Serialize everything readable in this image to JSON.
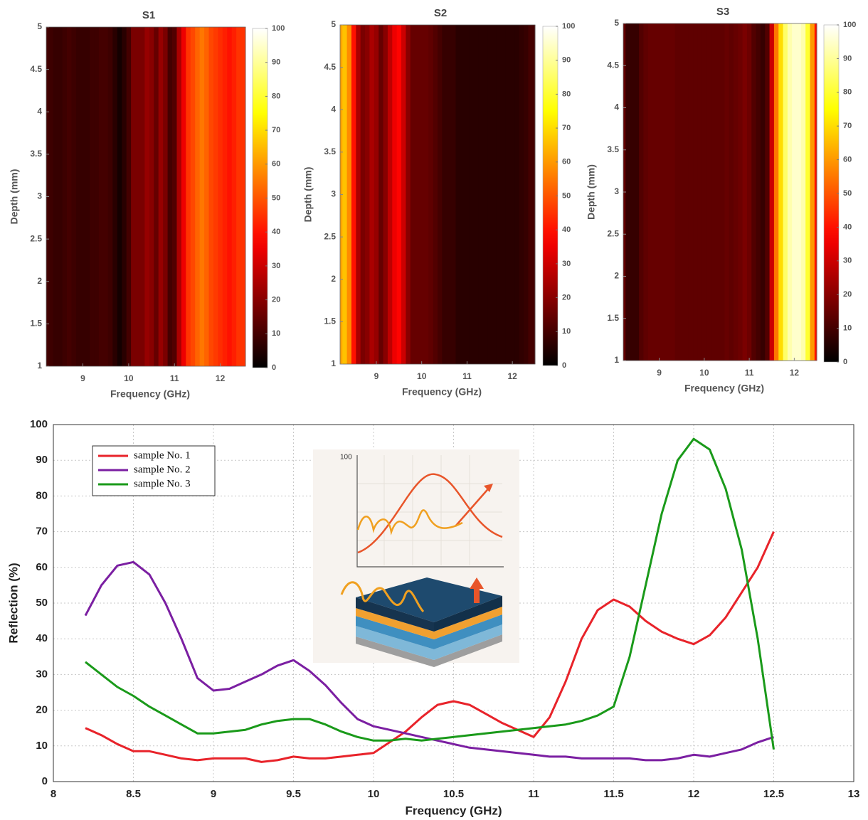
{
  "chart_data": [
    {
      "type": "heatmap",
      "title": "S1",
      "xlabel": "Frequency (GHz)",
      "ylabel": "Depth (mm)",
      "colormap": "hot",
      "x": [
        8.2,
        8.3,
        8.4,
        8.5,
        8.6,
        8.7,
        8.8,
        8.9,
        9.0,
        9.1,
        9.2,
        9.3,
        9.4,
        9.5,
        9.6,
        9.7,
        9.8,
        9.9,
        10.0,
        10.1,
        10.2,
        10.3,
        10.4,
        10.5,
        10.6,
        10.7,
        10.8,
        10.9,
        11.0,
        11.1,
        11.2,
        11.3,
        11.4,
        11.5,
        11.6,
        11.7,
        11.8,
        11.9,
        12.0,
        12.1,
        12.2,
        12.3,
        12.4,
        12.5
      ],
      "values": [
        10,
        9,
        8,
        8,
        9,
        10,
        9,
        8,
        8,
        8,
        9,
        9,
        10,
        10,
        9,
        6,
        3,
        6,
        10,
        18,
        18,
        18,
        22,
        20,
        15,
        22,
        18,
        10,
        12,
        25,
        35,
        45,
        48,
        52,
        55,
        52,
        48,
        46,
        44,
        42,
        40,
        42,
        45,
        45
      ],
      "xlim": [
        8.2,
        12.55
      ],
      "xticks": [
        9,
        10,
        11,
        12
      ],
      "ylim": [
        1,
        5
      ],
      "yticks": [
        1,
        1.5,
        2,
        2.5,
        3,
        3.5,
        4,
        4.5,
        5
      ],
      "clim": [
        0,
        100
      ],
      "cticks": [
        0,
        10,
        20,
        30,
        40,
        50,
        60,
        70,
        80,
        90,
        100
      ]
    },
    {
      "type": "heatmap",
      "title": "S2",
      "xlabel": "Frequency (GHz)",
      "ylabel": "Depth (mm)",
      "colormap": "hot",
      "x": [
        8.2,
        8.3,
        8.4,
        8.5,
        8.6,
        8.7,
        8.8,
        8.9,
        9.0,
        9.1,
        9.2,
        9.3,
        9.4,
        9.5,
        9.6,
        9.7,
        9.8,
        9.9,
        10.0,
        10.1,
        10.2,
        10.3,
        10.4,
        10.5,
        10.6,
        10.7,
        10.8,
        10.9,
        11.0,
        11.1,
        11.2,
        11.3,
        11.4,
        11.5,
        11.6,
        11.7,
        11.8,
        11.9,
        12.0,
        12.1,
        12.2,
        12.3,
        12.4,
        12.5
      ],
      "values": [
        62,
        66,
        58,
        40,
        25,
        18,
        20,
        25,
        22,
        15,
        20,
        28,
        35,
        38,
        30,
        20,
        15,
        15,
        15,
        15,
        14,
        12,
        10,
        8,
        8,
        8,
        6,
        6,
        6,
        6,
        6,
        6,
        6,
        6,
        6,
        6,
        6,
        6,
        6,
        6,
        7,
        8,
        10,
        10
      ],
      "xlim": [
        8.2,
        12.5
      ],
      "xticks": [
        9,
        10,
        11,
        12
      ],
      "ylim": [
        1,
        5
      ],
      "yticks": [
        1,
        1.5,
        2,
        2.5,
        3,
        3.5,
        4,
        4.5,
        5
      ],
      "clim": [
        0,
        100
      ],
      "cticks": [
        0,
        10,
        20,
        30,
        40,
        50,
        60,
        70,
        80,
        90,
        100
      ]
    },
    {
      "type": "heatmap",
      "title": "S3",
      "xlabel": "Frequency (GHz)",
      "ylabel": "Depth (mm)",
      "colormap": "hot",
      "x": [
        8.2,
        8.3,
        8.4,
        8.5,
        8.6,
        8.7,
        8.8,
        8.9,
        9.0,
        9.1,
        9.2,
        9.3,
        9.4,
        9.5,
        9.6,
        9.7,
        9.8,
        9.9,
        10.0,
        10.1,
        10.2,
        10.3,
        10.4,
        10.5,
        10.6,
        10.7,
        10.8,
        10.9,
        11.0,
        11.1,
        11.2,
        11.3,
        11.4,
        11.5,
        11.6,
        11.7,
        11.8,
        11.9,
        12.0,
        12.1,
        12.2,
        12.3,
        12.4,
        12.5
      ],
      "values": [
        15,
        8,
        8,
        8,
        12,
        14,
        15,
        15,
        15,
        15,
        15,
        15,
        14,
        14,
        14,
        14,
        14,
        14,
        14,
        14,
        14,
        14,
        14,
        15,
        14,
        15,
        16,
        18,
        16,
        12,
        10,
        8,
        12,
        30,
        55,
        70,
        85,
        92,
        95,
        95,
        92,
        80,
        60,
        40
      ],
      "xlim": [
        8.2,
        12.5
      ],
      "xticks": [
        9,
        10,
        11,
        12
      ],
      "ylim": [
        1,
        5
      ],
      "yticks": [
        1,
        1.5,
        2,
        2.5,
        3,
        3.5,
        4,
        4.5,
        5
      ],
      "clim": [
        0,
        100
      ],
      "cticks": [
        0,
        10,
        20,
        30,
        40,
        50,
        60,
        70,
        80,
        90,
        100
      ]
    },
    {
      "type": "line",
      "xlabel": "Frequency (GHz)",
      "ylabel": "Reflection (%)",
      "grid": true,
      "legend": "upper left",
      "inset_text": "100",
      "x": [
        8.2,
        8.3,
        8.4,
        8.5,
        8.6,
        8.7,
        8.8,
        8.9,
        9.0,
        9.1,
        9.2,
        9.3,
        9.4,
        9.5,
        9.6,
        9.7,
        9.8,
        9.9,
        10.0,
        10.1,
        10.2,
        10.3,
        10.4,
        10.5,
        10.6,
        10.7,
        10.8,
        10.9,
        11.0,
        11.1,
        11.2,
        11.3,
        11.4,
        11.5,
        11.6,
        11.7,
        11.8,
        11.9,
        12.0,
        12.1,
        12.2,
        12.3,
        12.4,
        12.5
      ],
      "series": [
        {
          "name": "sample No. 1",
          "color": "#e8232a",
          "values": [
            15,
            13,
            10.5,
            8.5,
            8.5,
            7.5,
            6.5,
            6,
            6.5,
            6.5,
            6.5,
            5.5,
            6,
            7,
            6.5,
            6.5,
            7,
            7.5,
            8,
            11,
            14,
            18,
            21.5,
            22.5,
            21.5,
            19,
            16.5,
            14.5,
            12.5,
            18,
            28,
            40,
            48,
            51,
            49,
            45,
            42,
            40,
            38.5,
            41,
            46,
            53,
            60,
            70
          ]
        },
        {
          "name": "sample No. 2",
          "color": "#7b1fa2",
          "values": [
            46.5,
            55,
            60.5,
            61.5,
            58,
            50,
            40,
            29,
            25.5,
            26,
            28,
            30,
            32.5,
            34,
            31,
            27,
            22,
            17.5,
            15.5,
            14.5,
            13.5,
            12.5,
            11.5,
            10.5,
            9.5,
            9,
            8.5,
            8,
            7.5,
            7,
            7,
            6.5,
            6.5,
            6.5,
            6.5,
            6,
            6,
            6.5,
            7.5,
            7,
            8,
            9,
            11,
            12.5
          ]
        },
        {
          "name": "sample No. 3",
          "color": "#1a9a1a",
          "values": [
            33.5,
            30,
            26.5,
            24,
            21,
            18.5,
            16,
            13.5,
            13.5,
            14,
            14.5,
            16,
            17,
            17.5,
            17.5,
            16,
            14,
            12.5,
            11.5,
            11.5,
            12,
            11.5,
            12,
            12.5,
            13,
            13.5,
            14,
            14.5,
            15,
            15.5,
            16,
            17,
            18.5,
            21,
            35,
            55,
            75,
            90,
            96,
            93,
            82,
            65,
            40,
            9
          ]
        }
      ],
      "xlim": [
        8,
        13
      ],
      "xticks": [
        8,
        8.5,
        9,
        9.5,
        10,
        10.5,
        11,
        11.5,
        12,
        12.5,
        13
      ],
      "ylim": [
        0,
        100
      ],
      "yticks": [
        0,
        10,
        20,
        30,
        40,
        50,
        60,
        70,
        80,
        90,
        100
      ]
    }
  ]
}
